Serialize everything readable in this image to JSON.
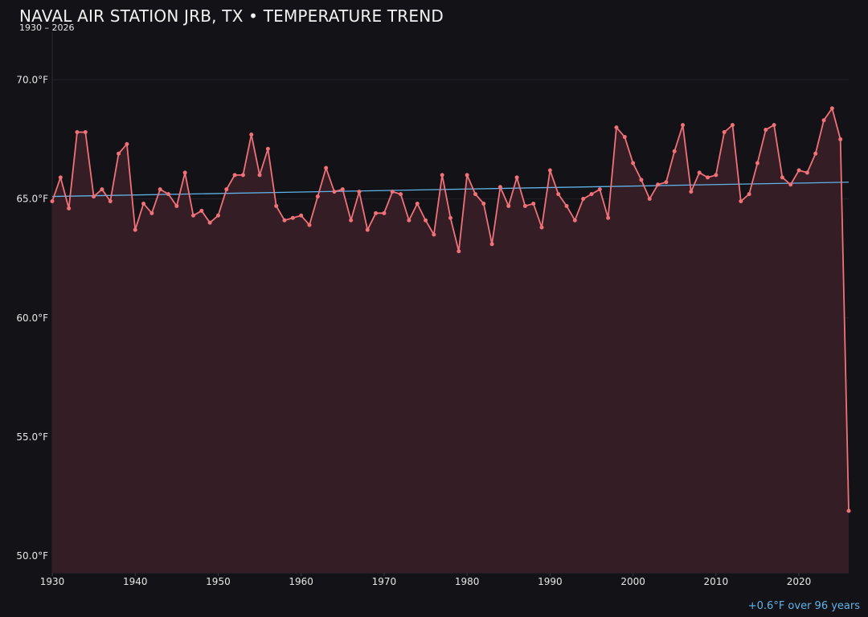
{
  "header": {
    "title": "NAVAL AIR STATION JRB, TX • TEMPERATURE TREND",
    "subtitle": "1930 – 2026"
  },
  "footnote": "+0.6°F over 96 years",
  "colors": {
    "background": "#131217",
    "series_line": "#f07178",
    "area_fill": "#341d25",
    "trend_line": "#5fb3e8",
    "footnote": "#5fb3e8"
  },
  "chart_data": {
    "type": "line",
    "xlabel": "",
    "ylabel": "",
    "xlim": [
      1930,
      2026
    ],
    "ylim": [
      49.3,
      72.0
    ],
    "x_ticks": [
      1930,
      1940,
      1950,
      1960,
      1970,
      1980,
      1990,
      2000,
      2010,
      2020
    ],
    "y_ticks": [
      50,
      55,
      60,
      65,
      70
    ],
    "y_tick_labels": [
      "50.0°F",
      "55.0°F",
      "60.0°F",
      "65.0°F",
      "70.0°F"
    ],
    "grid": "horizontal",
    "area_fill": true,
    "series": [
      {
        "x": [
          1930,
          1931,
          1932,
          1933,
          1934,
          1935,
          1936,
          1937,
          1938,
          1939,
          1940,
          1941,
          1942,
          1943,
          1944,
          1945,
          1946,
          1947,
          1948,
          1949,
          1950,
          1951,
          1952,
          1953,
          1954,
          1955,
          1956,
          1957,
          1958,
          1959,
          1960,
          1961,
          1962,
          1963,
          1964,
          1965,
          1966,
          1967,
          1968,
          1969,
          1970,
          1971,
          1972,
          1973,
          1974,
          1975,
          1976,
          1977,
          1978,
          1979,
          1980,
          1981,
          1982,
          1983,
          1984,
          1985,
          1986,
          1987,
          1988,
          1989,
          1990,
          1991,
          1992,
          1993,
          1994,
          1995,
          1996,
          1997,
          1998,
          1999,
          2000,
          2001,
          2002,
          2003,
          2004,
          2005,
          2006,
          2007,
          2008,
          2009,
          2010,
          2011,
          2012,
          2013,
          2014,
          2015,
          2016,
          2017,
          2018,
          2019,
          2020,
          2021,
          2022,
          2023,
          2024,
          2025,
          2026
        ],
        "values": [
          64.9,
          65.9,
          64.6,
          67.8,
          67.8,
          65.1,
          65.4,
          64.9,
          66.9,
          67.3,
          63.7,
          64.8,
          64.4,
          65.4,
          65.2,
          64.7,
          66.1,
          64.3,
          64.5,
          64.0,
          64.3,
          65.4,
          66.0,
          66.0,
          67.7,
          66.0,
          67.1,
          64.7,
          64.1,
          64.2,
          64.3,
          63.9,
          65.1,
          66.3,
          65.3,
          65.4,
          64.1,
          65.3,
          63.7,
          64.4,
          64.4,
          65.3,
          65.2,
          64.1,
          64.8,
          64.1,
          63.5,
          66.0,
          64.2,
          62.8,
          66.0,
          65.2,
          64.8,
          63.1,
          65.5,
          64.7,
          65.9,
          64.7,
          64.8,
          63.8,
          66.2,
          65.2,
          64.7,
          64.1,
          65.0,
          65.2,
          65.4,
          64.2,
          68.0,
          67.6,
          66.5,
          65.8,
          65.0,
          65.6,
          65.7,
          67.0,
          68.1,
          65.3,
          66.1,
          65.9,
          66.0,
          67.8,
          68.1,
          64.9,
          65.2,
          66.5,
          67.9,
          68.1,
          65.9,
          65.6,
          66.2,
          66.1,
          66.9,
          68.3,
          68.8,
          67.5,
          51.9
        ]
      }
    ],
    "trend": {
      "x": [
        1930,
        2026
      ],
      "values": [
        65.1,
        65.7
      ]
    }
  }
}
